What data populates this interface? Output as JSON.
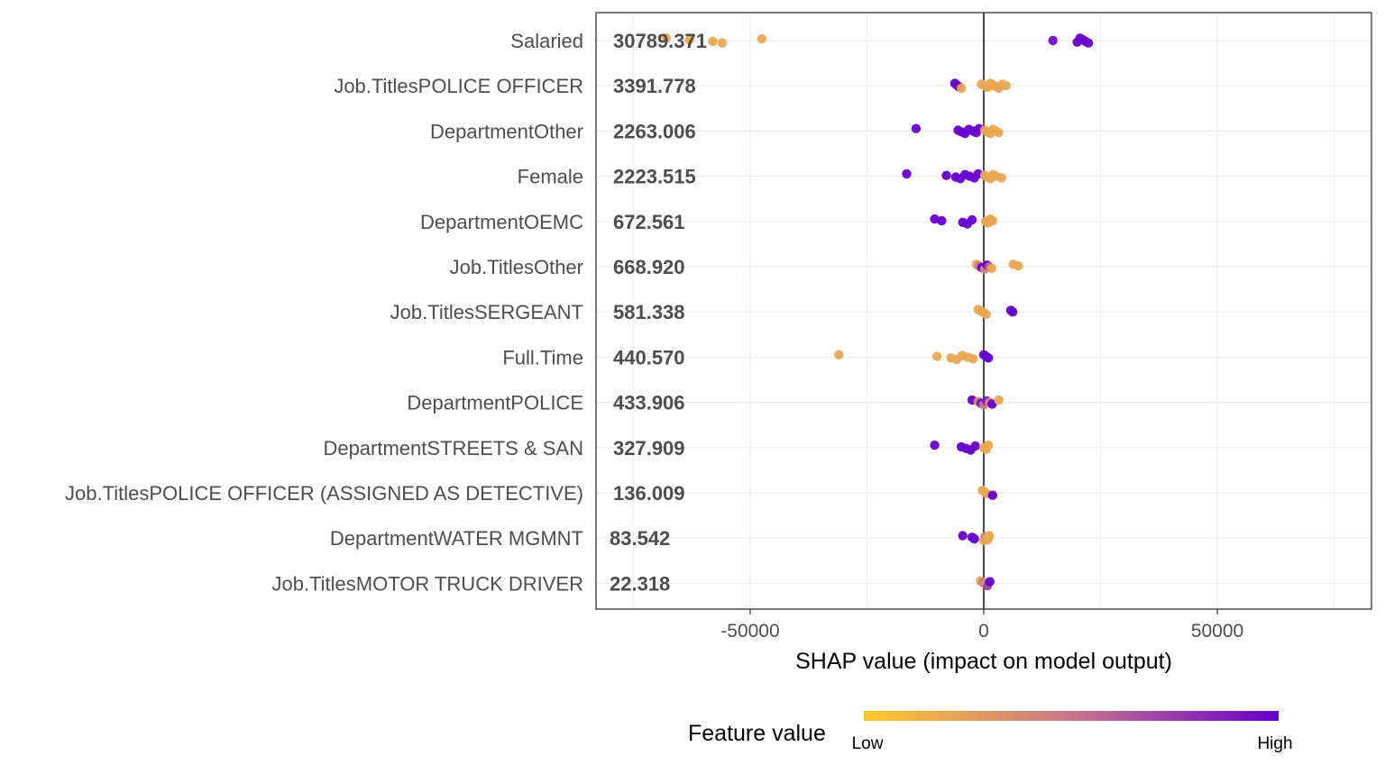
{
  "chart_data": {
    "type": "scatter",
    "xlabel": "SHAP value (impact on model output)",
    "ylabel": "",
    "xlim": [
      -83000,
      83000
    ],
    "xticks": [
      -50000,
      0,
      50000
    ],
    "xtick_labels": [
      "-50000",
      "0",
      "50000"
    ],
    "grid": true,
    "legend": {
      "title": "Feature value",
      "low_label": "Low",
      "high_label": "High",
      "position": "bottom",
      "low_color": "#FFC72C",
      "high_color": "#6600CC"
    },
    "features": [
      {
        "name": "Salaried",
        "mean_abs_shap": "30789.371",
        "points": [
          [
            -68000,
            0.2
          ],
          [
            -63000,
            0.2
          ],
          [
            -58000,
            0.2
          ],
          [
            -56000,
            0.2
          ],
          [
            -47500,
            0.2
          ],
          [
            14800,
            0.95
          ],
          [
            20000,
            1
          ],
          [
            20600,
            1
          ],
          [
            21200,
            1
          ],
          [
            21800,
            1
          ],
          [
            22400,
            1
          ]
        ]
      },
      {
        "name": "Job.TitlesPOLICE OFFICER",
        "mean_abs_shap": "3391.778",
        "points": [
          [
            -6200,
            1
          ],
          [
            -5800,
            1
          ],
          [
            -5400,
            1
          ],
          [
            -4800,
            0.2
          ],
          [
            -500,
            0.2
          ],
          [
            200,
            0.2
          ],
          [
            800,
            0.2
          ],
          [
            1400,
            0.2
          ],
          [
            2000,
            0.2
          ],
          [
            2600,
            0.2
          ],
          [
            3200,
            0.2
          ],
          [
            4000,
            0.2
          ],
          [
            4800,
            0.2
          ]
        ]
      },
      {
        "name": "DepartmentOther",
        "mean_abs_shap": "2263.006",
        "points": [
          [
            -14500,
            1
          ],
          [
            -5500,
            1
          ],
          [
            -4800,
            1
          ],
          [
            -4000,
            1
          ],
          [
            -3200,
            1
          ],
          [
            -2300,
            1
          ],
          [
            -1600,
            1
          ],
          [
            -1000,
            1
          ],
          [
            200,
            0.2
          ],
          [
            800,
            0.2
          ],
          [
            1400,
            0.2
          ],
          [
            2000,
            0.2
          ],
          [
            2600,
            0.2
          ],
          [
            3200,
            0.2
          ]
        ]
      },
      {
        "name": "Female",
        "mean_abs_shap": "2223.515",
        "points": [
          [
            -16500,
            1
          ],
          [
            -8000,
            1
          ],
          [
            -6000,
            1
          ],
          [
            -5000,
            1
          ],
          [
            -4000,
            1
          ],
          [
            -3000,
            1
          ],
          [
            -2000,
            1
          ],
          [
            -1200,
            1
          ],
          [
            200,
            0.2
          ],
          [
            800,
            0.2
          ],
          [
            1400,
            0.2
          ],
          [
            2000,
            0.2
          ],
          [
            2600,
            0.2
          ],
          [
            3800,
            0.2
          ]
        ]
      },
      {
        "name": "DepartmentOEMC",
        "mean_abs_shap": "672.561",
        "points": [
          [
            -10500,
            1
          ],
          [
            -9000,
            1
          ],
          [
            -4500,
            1
          ],
          [
            -3500,
            1
          ],
          [
            -2500,
            1
          ],
          [
            400,
            0.2
          ],
          [
            900,
            0.2
          ],
          [
            1400,
            0.2
          ],
          [
            1900,
            0.2
          ]
        ]
      },
      {
        "name": "Job.TitlesOther",
        "mean_abs_shap": "668.920",
        "points": [
          [
            -1600,
            0.2
          ],
          [
            -1000,
            0.5
          ],
          [
            -400,
            1
          ],
          [
            200,
            0.4
          ],
          [
            700,
            1
          ],
          [
            1200,
            0.6
          ],
          [
            1700,
            0.2
          ],
          [
            6300,
            0.2
          ],
          [
            7400,
            0.2
          ]
        ]
      },
      {
        "name": "Job.TitlesSERGEANT",
        "mean_abs_shap": "581.338",
        "points": [
          [
            -1200,
            0.2
          ],
          [
            -600,
            0.2
          ],
          [
            0,
            0.2
          ],
          [
            500,
            0.2
          ],
          [
            5800,
            1
          ],
          [
            6200,
            1
          ]
        ]
      },
      {
        "name": "Full.Time",
        "mean_abs_shap": "440.570",
        "points": [
          [
            -31000,
            0.2
          ],
          [
            -10000,
            0.2
          ],
          [
            -7000,
            0.2
          ],
          [
            -5800,
            0.2
          ],
          [
            -4600,
            0.2
          ],
          [
            -3400,
            0.2
          ],
          [
            -2300,
            0.2
          ],
          [
            0,
            1
          ],
          [
            500,
            1
          ],
          [
            1000,
            1
          ]
        ]
      },
      {
        "name": "DepartmentPOLICE",
        "mean_abs_shap": "433.906",
        "points": [
          [
            -2500,
            1
          ],
          [
            -1200,
            0.4
          ],
          [
            -600,
            0.9
          ],
          [
            0,
            0.5
          ],
          [
            600,
            0.9
          ],
          [
            1200,
            0.4
          ],
          [
            1800,
            1
          ],
          [
            3200,
            0.2
          ]
        ]
      },
      {
        "name": "DepartmentSTREETS & SAN",
        "mean_abs_shap": "327.909",
        "points": [
          [
            -10500,
            1
          ],
          [
            -4800,
            1
          ],
          [
            -3800,
            1
          ],
          [
            -2800,
            1
          ],
          [
            -1800,
            1
          ],
          [
            0,
            0.2
          ],
          [
            500,
            0.2
          ],
          [
            1000,
            0.2
          ]
        ]
      },
      {
        "name": "Job.TitlesPOLICE OFFICER (ASSIGNED AS DETECTIVE)",
        "mean_abs_shap": "136.009",
        "points": [
          [
            -300,
            0.2
          ],
          [
            200,
            0.2
          ],
          [
            700,
            0.2
          ],
          [
            1900,
            1
          ]
        ]
      },
      {
        "name": "DepartmentWATER MGMNT",
        "mean_abs_shap": "83.542",
        "points": [
          [
            -4500,
            1
          ],
          [
            -2500,
            1
          ],
          [
            -2000,
            1
          ],
          [
            0,
            0.2
          ],
          [
            300,
            0.5
          ],
          [
            600,
            0.2
          ],
          [
            900,
            0.2
          ],
          [
            1200,
            0.2
          ]
        ]
      },
      {
        "name": "Job.TitlesMOTOR TRUCK DRIVER",
        "mean_abs_shap": "22.318",
        "points": [
          [
            -700,
            0.2
          ],
          [
            -200,
            0.5
          ],
          [
            300,
            0.3
          ],
          [
            800,
            0.7
          ],
          [
            1300,
            1
          ]
        ]
      }
    ]
  }
}
